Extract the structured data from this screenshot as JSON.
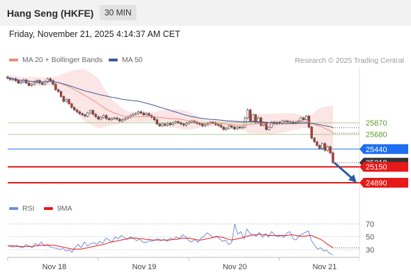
{
  "header": {
    "title": "Hang Seng (HKFE)",
    "timeframe": "30 MIN"
  },
  "datetime": "Friday, November 21, 2025 4:14:37 AM CET",
  "legend": {
    "ma20": "MA 20 + Bollinger Bands",
    "ma50": "MA 50",
    "rsi": "RSI",
    "rsi_ma": "9MA",
    "credit": "Research © 2025 Trading Central"
  },
  "colors": {
    "ma20": "#f08a80",
    "ma50": "#3a5a9a",
    "band": "#fbe0e0",
    "support_green": "#a8d08d",
    "blue_level": "#1e6ff0",
    "red_level": "#e81919",
    "candle_up": "#e8d0d0",
    "candle_down": "#c0392b",
    "arrow": "#2a5ba8",
    "rsi": "#6e8fd8",
    "rsi_ma": "#e81919"
  },
  "chart_data": [
    {
      "type": "candlestick",
      "title": "Hang Seng (HKFE)",
      "timeframe": "30 MIN",
      "x_ticks": [
        "Nov 18",
        "Nov 19",
        "Nov 20",
        "Nov 21"
      ],
      "price_range": [
        24820,
        26680
      ],
      "levels": [
        {
          "value": 25870,
          "label": "25870",
          "style": "green-line"
        },
        {
          "value": 25680,
          "label": "25680",
          "style": "green-line"
        },
        {
          "value": 25440,
          "label": "25440",
          "style": "blue-line"
        },
        {
          "value": 25218,
          "label": "25218",
          "style": "last-price"
        },
        {
          "value": 25150,
          "label": "25150",
          "style": "red-line"
        },
        {
          "value": 24890,
          "label": "24890",
          "style": "red-line"
        }
      ],
      "close": [
        26600,
        26580,
        26590,
        26560,
        26520,
        26540,
        26570,
        26520,
        26480,
        26500,
        26530,
        26560,
        26520,
        26500,
        26540,
        26590,
        26560,
        26500,
        26410,
        26380,
        26300,
        26220,
        26250,
        26180,
        26120,
        26080,
        26050,
        26020,
        26000,
        25980,
        26030,
        26070,
        26010,
        25970,
        25930,
        25960,
        25990,
        25940,
        25920,
        25940,
        25950,
        25930,
        25900,
        25920,
        25940,
        25960,
        25990,
        26010,
        26020,
        26050,
        26030,
        26000,
        26020,
        25990,
        25960,
        25920,
        25850,
        25820,
        25850,
        25830,
        25860,
        25840,
        25870,
        25890,
        25870,
        25850,
        25830,
        25860,
        25880,
        25900,
        25880,
        25860,
        25850,
        25820,
        25840,
        25860,
        25880,
        25870,
        25840,
        25830,
        25800,
        25760,
        25780,
        25820,
        25800,
        25770,
        25800,
        25790,
        25800,
        25950,
        26080,
        25900,
        26000,
        25880,
        25950,
        25830,
        25870,
        25760,
        25800,
        25880,
        25850,
        25880,
        25860,
        25900,
        25900,
        25880,
        25890,
        25870,
        25880,
        25900,
        25950,
        25920,
        25980,
        25800,
        25620,
        25560,
        25500,
        25450,
        25530,
        25420,
        25480,
        25380,
        25218
      ],
      "series": [
        {
          "name": "MA 20 + Bollinger Bands",
          "ma_period": 20
        },
        {
          "name": "MA 50",
          "ma_period": 50
        }
      ],
      "forecast_arrow": {
        "from": 25218,
        "to": 24890
      }
    },
    {
      "type": "line",
      "title": "RSI",
      "y_ticks": [
        70,
        50,
        30
      ],
      "ylim": [
        15,
        80
      ],
      "series": [
        {
          "name": "RSI",
          "values": [
            36,
            35,
            34,
            37,
            34,
            33,
            38,
            36,
            33,
            40,
            37,
            42,
            36,
            38,
            34,
            33,
            32,
            30,
            32,
            28,
            30,
            26,
            34,
            38,
            33,
            42,
            36,
            39,
            41,
            38,
            43,
            40,
            48,
            45,
            42,
            50,
            47,
            52,
            49,
            46,
            50,
            48,
            44,
            46,
            42,
            41,
            44,
            43,
            45,
            47,
            44,
            46,
            43,
            48,
            46,
            50,
            47,
            53,
            50,
            44,
            42,
            46,
            41,
            48,
            51,
            56,
            53,
            49,
            51,
            47,
            43,
            45,
            38,
            41,
            70,
            54,
            58,
            47,
            62,
            55,
            53,
            51,
            57,
            49,
            55,
            50,
            58,
            53,
            50,
            52,
            49,
            56,
            58,
            47,
            45,
            52,
            54,
            57,
            59,
            44,
            37,
            31,
            33,
            28,
            29,
            24,
            22
          ]
        },
        {
          "name": "9MA",
          "values": [
            36,
            36,
            36,
            35,
            35,
            35,
            35,
            35,
            35,
            36,
            36,
            37,
            37,
            37,
            37,
            37,
            36,
            35,
            34,
            33,
            32,
            31,
            31,
            31,
            31,
            32,
            33,
            34,
            35,
            36,
            37,
            38,
            39,
            41,
            42,
            43,
            44,
            45,
            46,
            47,
            48,
            48,
            48,
            47,
            47,
            46,
            46,
            45,
            45,
            45,
            45,
            45,
            45,
            45,
            46,
            46,
            47,
            48,
            48,
            48,
            47,
            46,
            45,
            45,
            46,
            47,
            48,
            49,
            50,
            50,
            49,
            48,
            46,
            45,
            46,
            47,
            48,
            49,
            51,
            52,
            53,
            53,
            54,
            53,
            53,
            52,
            52,
            52,
            52,
            52,
            52,
            52,
            53,
            53,
            52,
            51,
            51,
            51,
            52,
            52,
            50,
            48,
            46,
            43,
            39,
            36,
            33
          ]
        }
      ]
    }
  ]
}
